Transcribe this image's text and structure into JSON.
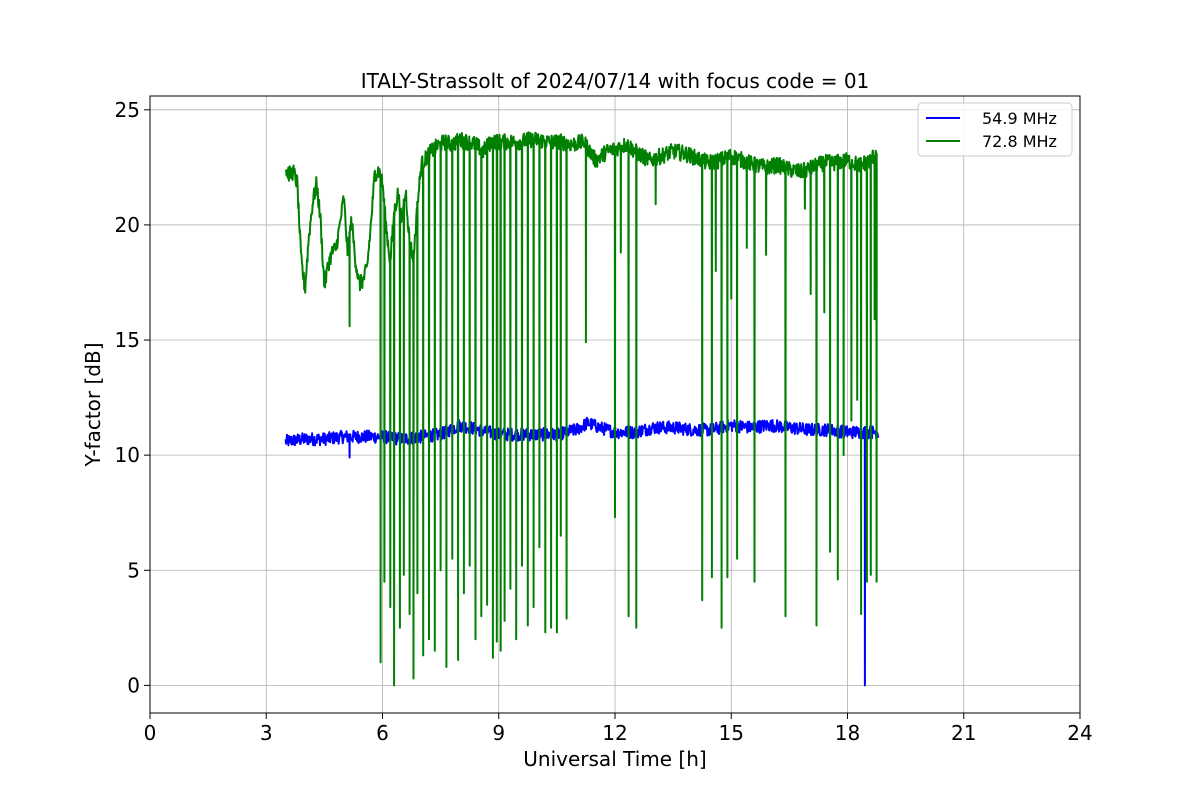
{
  "chart_data": {
    "type": "line",
    "title": "ITALY-Strassolt of 2024/07/14 with focus code = 01",
    "xlabel": "Universal Time [h]",
    "ylabel": "Y-factor [dB]",
    "xlim": [
      0,
      24
    ],
    "ylim": [
      -1.2,
      25.6
    ],
    "xticks": [
      0,
      3,
      6,
      9,
      12,
      15,
      18,
      21,
      24
    ],
    "yticks": [
      0,
      5,
      10,
      15,
      20,
      25
    ],
    "grid": true,
    "legend_position": "top-right",
    "series": [
      {
        "name": "54.9 MHz",
        "color": "#0000ff",
        "x": [
          3.5,
          4.0,
          4.5,
          5.0,
          5.5,
          6.0,
          6.5,
          7.0,
          7.5,
          8.0,
          8.5,
          9.0,
          9.5,
          10.0,
          10.5,
          11.0,
          11.3,
          11.6,
          12.0,
          12.5,
          13.0,
          13.5,
          14.0,
          14.5,
          15.0,
          15.5,
          16.0,
          16.5,
          17.0,
          17.5,
          18.0,
          18.5,
          18.8
        ],
        "y": [
          10.6,
          10.7,
          10.7,
          10.8,
          10.8,
          10.8,
          10.7,
          10.8,
          10.9,
          11.3,
          11.1,
          10.9,
          10.9,
          10.9,
          10.9,
          11.1,
          11.4,
          11.2,
          11.0,
          11.0,
          11.2,
          11.2,
          11.1,
          11.1,
          11.3,
          11.2,
          11.3,
          11.2,
          11.1,
          11.1,
          11.0,
          11.0,
          11.0
        ],
        "dips": [
          [
            5.15,
            9.9
          ],
          [
            18.45,
            0.0
          ]
        ]
      },
      {
        "name": "72.8 MHz",
        "color": "#008000",
        "x": [
          3.5,
          3.6,
          3.7,
          3.8,
          3.9,
          4.0,
          4.1,
          4.2,
          4.3,
          4.4,
          4.5,
          4.6,
          4.7,
          4.8,
          4.9,
          5.0,
          5.1,
          5.2,
          5.3,
          5.4,
          5.5,
          5.6,
          5.7,
          5.8,
          5.9,
          6.0,
          6.1,
          6.2,
          6.3,
          6.4,
          6.5,
          6.6,
          6.7,
          6.8,
          6.9,
          7.0,
          7.2,
          7.4,
          7.6,
          7.8,
          8.0,
          8.2,
          8.4,
          8.6,
          8.8,
          9.0,
          9.2,
          9.5,
          9.8,
          10.0,
          10.3,
          10.6,
          10.9,
          11.2,
          11.5,
          11.8,
          12.0,
          12.3,
          12.6,
          12.9,
          13.2,
          13.5,
          13.8,
          14.1,
          14.4,
          14.7,
          15.0,
          15.3,
          15.6,
          15.9,
          16.2,
          16.5,
          16.8,
          17.1,
          17.4,
          17.7,
          18.0,
          18.3,
          18.6,
          18.75
        ],
        "y": [
          22.4,
          22.2,
          22.3,
          21.8,
          18.5,
          17.2,
          19.5,
          21.0,
          21.8,
          20.2,
          17.3,
          18.3,
          18.8,
          19.0,
          20.0,
          21.2,
          18.8,
          20.2,
          18.5,
          17.4,
          17.6,
          18.1,
          20.0,
          22.2,
          22.4,
          21.8,
          19.8,
          18.4,
          20.5,
          21.4,
          20.1,
          21.5,
          19.2,
          18.6,
          20.8,
          22.6,
          23.1,
          23.4,
          23.6,
          23.5,
          23.7,
          23.6,
          23.5,
          23.2,
          23.6,
          23.6,
          23.6,
          23.6,
          23.7,
          23.7,
          23.6,
          23.6,
          23.5,
          23.6,
          22.8,
          23.2,
          23.3,
          23.5,
          23.1,
          22.8,
          23.0,
          23.2,
          23.1,
          22.9,
          22.7,
          22.8,
          23.0,
          22.8,
          22.6,
          22.5,
          22.6,
          22.4,
          22.3,
          22.5,
          22.7,
          22.7,
          22.8,
          22.6,
          22.8,
          23.2
        ],
        "dips": [
          [
            5.15,
            15.6
          ],
          [
            5.95,
            1.0
          ],
          [
            6.05,
            4.5
          ],
          [
            6.2,
            3.4
          ],
          [
            6.3,
            0.0
          ],
          [
            6.45,
            2.5
          ],
          [
            6.55,
            4.8
          ],
          [
            6.7,
            3.1
          ],
          [
            6.8,
            0.3
          ],
          [
            6.9,
            4.0
          ],
          [
            7.05,
            1.3
          ],
          [
            7.2,
            2.0
          ],
          [
            7.35,
            1.5
          ],
          [
            7.5,
            5.0
          ],
          [
            7.65,
            0.8
          ],
          [
            7.8,
            5.5
          ],
          [
            7.95,
            1.1
          ],
          [
            8.1,
            4.0
          ],
          [
            8.25,
            5.2
          ],
          [
            8.4,
            2.0
          ],
          [
            8.55,
            3.0
          ],
          [
            8.7,
            3.5
          ],
          [
            8.85,
            1.2
          ],
          [
            8.95,
            1.9
          ],
          [
            9.05,
            1.5
          ],
          [
            9.15,
            2.8
          ],
          [
            9.3,
            4.2
          ],
          [
            9.45,
            2.0
          ],
          [
            9.6,
            5.2
          ],
          [
            9.75,
            2.6
          ],
          [
            9.9,
            3.4
          ],
          [
            10.05,
            6.0
          ],
          [
            10.2,
            2.3
          ],
          [
            10.35,
            2.5
          ],
          [
            10.5,
            2.3
          ],
          [
            10.6,
            6.5
          ],
          [
            10.75,
            2.9
          ],
          [
            11.25,
            14.9
          ],
          [
            12.0,
            7.3
          ],
          [
            12.15,
            18.8
          ],
          [
            12.35,
            3.0
          ],
          [
            12.55,
            2.5
          ],
          [
            13.05,
            20.9
          ],
          [
            14.25,
            3.7
          ],
          [
            14.5,
            4.7
          ],
          [
            14.6,
            18.0
          ],
          [
            14.75,
            2.5
          ],
          [
            14.9,
            4.7
          ],
          [
            15.0,
            16.8
          ],
          [
            15.15,
            5.5
          ],
          [
            15.4,
            19.0
          ],
          [
            15.6,
            4.5
          ],
          [
            15.9,
            18.7
          ],
          [
            16.4,
            3.0
          ],
          [
            16.9,
            20.7
          ],
          [
            17.05,
            17.0
          ],
          [
            17.2,
            2.6
          ],
          [
            17.4,
            16.2
          ],
          [
            17.55,
            5.8
          ],
          [
            17.75,
            4.6
          ],
          [
            17.9,
            10.0
          ],
          [
            18.1,
            11.5
          ],
          [
            18.25,
            12.4
          ],
          [
            18.35,
            3.1
          ],
          [
            18.5,
            4.5
          ],
          [
            18.6,
            4.8
          ],
          [
            18.7,
            15.9
          ],
          [
            18.75,
            4.5
          ]
        ]
      }
    ]
  }
}
